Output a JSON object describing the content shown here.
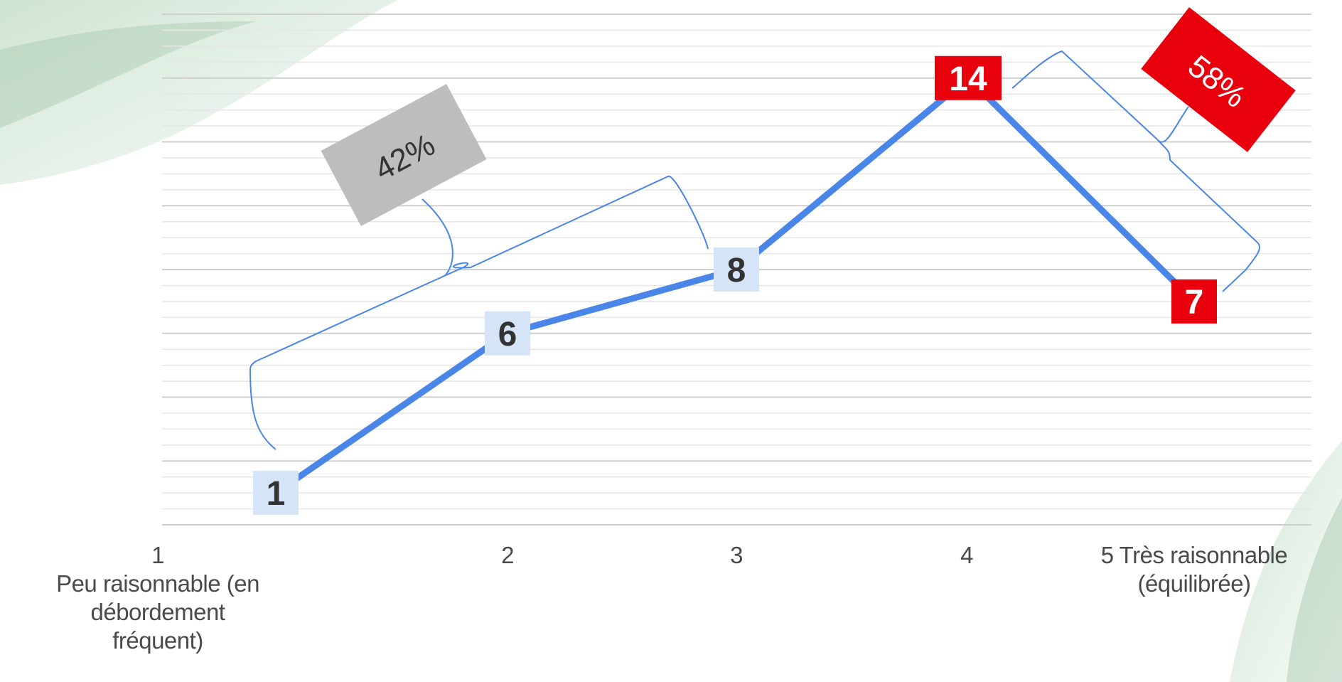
{
  "chart_data": {
    "type": "line",
    "title": "",
    "xlabel": "",
    "ylabel": "",
    "categories": [
      [
        "1",
        "Peu raisonnable (en",
        "débordement",
        "fréquent)"
      ],
      [
        "2"
      ],
      [
        "3"
      ],
      [
        "4"
      ],
      [
        "5 Très raisonnable",
        "(équilibrée)"
      ]
    ],
    "values": [
      1,
      6,
      8,
      14,
      7
    ],
    "ylim": [
      0,
      16
    ],
    "grid": true,
    "legend": "none",
    "data_labels": [
      "1",
      "6",
      "8",
      "14",
      "7"
    ],
    "label_colors": [
      "light-blue",
      "light-blue",
      "light-blue",
      "red",
      "red"
    ],
    "annotations": [
      {
        "text": "42%",
        "covers": [
          "1",
          "2",
          "3"
        ],
        "color": "gray"
      },
      {
        "text": "58%",
        "covers": [
          "4",
          "5 Très raisonnable"
        ],
        "color": "red"
      }
    ],
    "colors": {
      "line": "#4a86e8",
      "label_light": "#d6e4f7",
      "label_red": "#e8000d",
      "annotation_gray": "#bdbdbd",
      "brace": "#4a86e8",
      "grid": "#d3d3d3"
    }
  }
}
